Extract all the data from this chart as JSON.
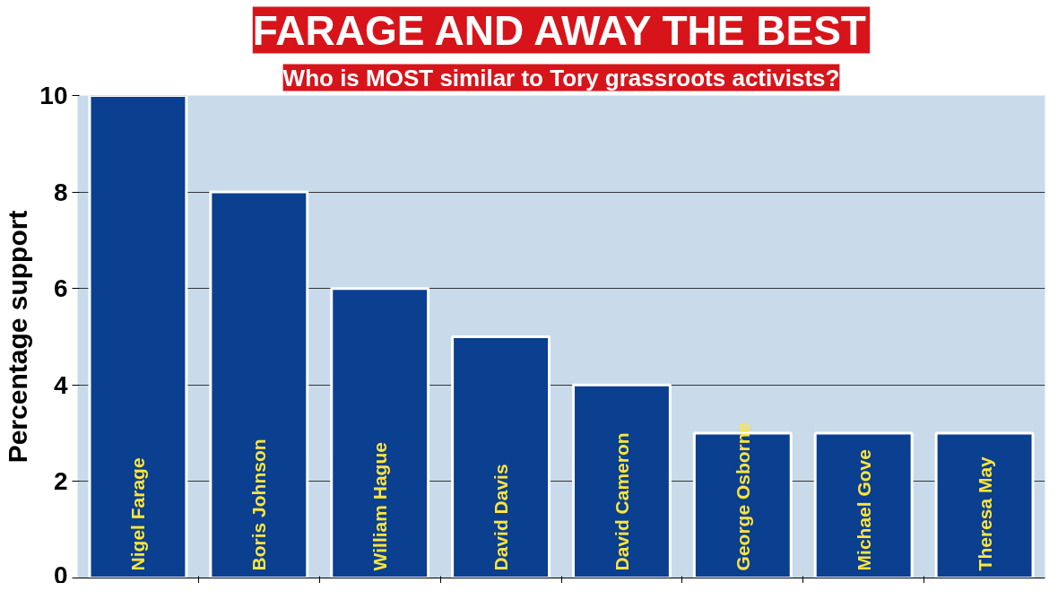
{
  "chart_data": {
    "type": "bar",
    "title": "FARAGE AND AWAY THE BEST",
    "subtitle": "Who is MOST similar to Tory grassroots activists?",
    "ylabel": "Percentage support",
    "categories": [
      "Nigel Farage",
      "Boris Johnson",
      "William Hague",
      "David Davis",
      "David Cameron",
      "George Osborne",
      "Michael Gove",
      "Theresa May"
    ],
    "values": [
      10,
      8,
      6,
      5,
      4,
      3,
      3,
      3
    ],
    "color": "#0b3f8f",
    "ylim": [
      0,
      10
    ],
    "yticks": [
      0,
      2,
      4,
      6,
      8,
      10
    ],
    "grid": "y"
  }
}
